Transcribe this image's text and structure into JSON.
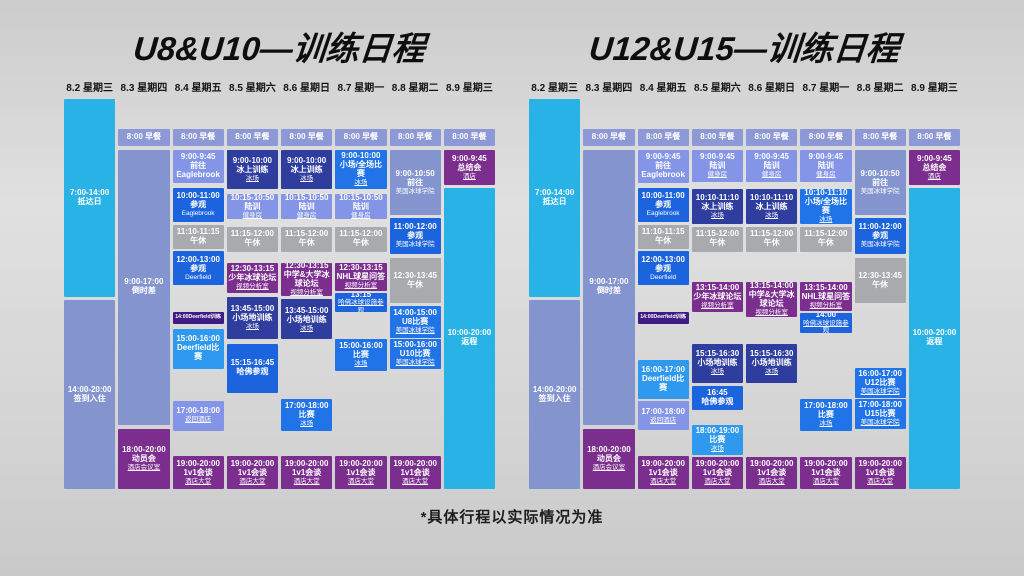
{
  "footnote": "*具体行程以实际情况为准",
  "colors": {
    "cyan": "#29b2e6",
    "peri": "#8494cf",
    "bfast": "#8d98d6",
    "lblue": "#8495e8",
    "navy": "#2e3d9e",
    "bblue": "#1c64dd",
    "blue": "#2173e8",
    "mblue": "#2e99ee",
    "gray": "#a8aaad",
    "purple": "#7b2e8e",
    "dpurple": "#3f1b86"
  },
  "schedules": [
    {
      "title": "U8&U10—训练日程",
      "columns": [
        {
          "date": "8.2 星期三",
          "events": [
            {
              "time": "7:00-14:00",
              "title": "抵达日",
              "c": "cyan",
              "s": 7.0,
              "e": 13.6
            },
            {
              "time": "14:00-20:00",
              "title": "签到入住",
              "c": "peri",
              "s": 13.7,
              "e": 20.0
            }
          ]
        },
        {
          "date": "8.3 星期四",
          "events": [
            {
              "time": "8:00 早餐",
              "c": "bfast",
              "s": 8.0,
              "e": 8.55
            },
            {
              "time": "9:00-17:00",
              "title": "倒时差",
              "c": "peri",
              "s": 8.7,
              "e": 17.85
            },
            {
              "time": "18:00-20:00",
              "title": "动员会",
              "loc": "酒店会议室",
              "c": "purple",
              "s": 18.0,
              "e": 20.0
            }
          ]
        },
        {
          "date": "8.4 星期五",
          "events": [
            {
              "time": "8:00 早餐",
              "c": "bfast",
              "s": 8.0,
              "e": 8.55
            },
            {
              "time": "9:00-9:45",
              "title": "前往Eaglebrook",
              "c": "lblue",
              "s": 8.7,
              "e": 9.8
            },
            {
              "time": "10:00-11:00",
              "title": "参观",
              "sub": "Eaglebrook",
              "c": "bblue",
              "s": 9.95,
              "e": 11.1
            },
            {
              "time": "11:10-11:15",
              "title": "午休",
              "c": "gray",
              "s": 11.2,
              "e": 12.0
            },
            {
              "time": "12:00-13:00",
              "title": "参观",
              "sub": "Deerfield",
              "c": "bblue",
              "s": 12.08,
              "e": 13.2
            },
            {
              "time": "14:00Deerfield训练",
              "c": "dpurple",
              "s": 14.1,
              "e": 14.5,
              "tiny": 1
            },
            {
              "time": "15:00-16:00",
              "title": "Deerfield比赛",
              "c": "mblue",
              "s": 14.65,
              "e": 16.0
            },
            {
              "time": "17:00-18:00",
              "loc": "返回酒店",
              "c": "lblue",
              "s": 17.05,
              "e": 18.05
            },
            {
              "time": "19:00-20:00",
              "title": "1v1会谈",
              "loc": "酒店大堂",
              "c": "purple",
              "s": 18.9,
              "e": 20.0
            }
          ]
        },
        {
          "date": "8.5 星期六",
          "events": [
            {
              "time": "8:00 早餐",
              "c": "bfast",
              "s": 8.0,
              "e": 8.55
            },
            {
              "time": "9:00-10:00",
              "title": "冰上训练",
              "loc": "冰场",
              "c": "navy",
              "s": 8.7,
              "e": 10.0
            },
            {
              "time": "10:15-10:50",
              "title": "陆训",
              "loc": "健身房",
              "c": "lblue",
              "s": 10.15,
              "e": 11.0
            },
            {
              "time": "11:15-12:00",
              "title": "午休",
              "c": "gray",
              "s": 11.25,
              "e": 12.1
            },
            {
              "time": "12:30-13:15",
              "title": "少年冰球论坛",
              "loc": "视频分析室",
              "c": "purple",
              "s": 12.45,
              "e": 13.45
            },
            {
              "time": "13:45-15:00",
              "title": "小场地训练",
              "loc": "冰场",
              "c": "navy",
              "s": 13.6,
              "e": 15.0
            },
            {
              "time": "15:15-16:45",
              "title": "哈佛参观",
              "c": "bblue",
              "s": 15.15,
              "e": 16.8
            },
            {
              "time": "19:00-20:00",
              "title": "1v1会谈",
              "loc": "酒店大堂",
              "c": "purple",
              "s": 18.9,
              "e": 20.0
            }
          ]
        },
        {
          "date": "8.6 星期日",
          "events": [
            {
              "time": "8:00 早餐",
              "c": "bfast",
              "s": 8.0,
              "e": 8.55
            },
            {
              "time": "9:00-10:00",
              "title": "冰上训练",
              "loc": "冰场",
              "c": "navy",
              "s": 8.7,
              "e": 10.0
            },
            {
              "time": "10:15-10:50",
              "title": "陆训",
              "loc": "健身房",
              "c": "lblue",
              "s": 10.15,
              "e": 11.0
            },
            {
              "time": "11:15-12:00",
              "title": "午休",
              "c": "gray",
              "s": 11.25,
              "e": 12.1
            },
            {
              "time": "12:30-13:15",
              "title": "中学&大学冰球论坛",
              "loc": "视频分析室",
              "c": "purple",
              "s": 12.45,
              "e": 13.55
            },
            {
              "time": "13:45-15:00",
              "title": "小场地训练",
              "loc": "冰场",
              "c": "navy",
              "s": 13.68,
              "e": 15.0
            },
            {
              "time": "17:00-18:00",
              "title": "比赛",
              "loc": "冰场",
              "c": "blue",
              "s": 17.0,
              "e": 18.05
            },
            {
              "time": "19:00-20:00",
              "title": "1v1会谈",
              "loc": "酒店大堂",
              "c": "purple",
              "s": 18.9,
              "e": 20.0
            }
          ]
        },
        {
          "date": "8.7 星期一",
          "events": [
            {
              "time": "8:00 早餐",
              "c": "bfast",
              "s": 8.0,
              "e": 8.55
            },
            {
              "time": "9:00-10:00",
              "title": "小场/全场比赛",
              "loc": "冰场",
              "c": "blue",
              "s": 8.7,
              "e": 10.0
            },
            {
              "time": "10:15-10:50",
              "title": "陆训",
              "loc": "健身房",
              "c": "lblue",
              "s": 10.15,
              "e": 11.0
            },
            {
              "time": "11:15-12:00",
              "title": "午休",
              "c": "gray",
              "s": 11.25,
              "e": 12.1
            },
            {
              "time": "12:30-13:15",
              "title": "NHL球星问答",
              "loc": "视频分析室",
              "c": "purple",
              "s": 12.45,
              "e": 13.4
            },
            {
              "time": "13:15",
              "loc": "哈佛冰球设施参观",
              "c": "bblue",
              "s": 13.45,
              "e": 14.1
            },
            {
              "time": "15:00-16:00",
              "title": "比赛",
              "loc": "冰场",
              "c": "blue",
              "s": 15.0,
              "e": 16.05
            },
            {
              "time": "19:00-20:00",
              "title": "1v1会谈",
              "loc": "酒店大堂",
              "c": "purple",
              "s": 18.9,
              "e": 20.0
            }
          ]
        },
        {
          "date": "8.8 星期二",
          "events": [
            {
              "time": "8:00 早餐",
              "c": "bfast",
              "s": 8.0,
              "e": 8.55
            },
            {
              "time": "9:00-10:50",
              "title": "前往",
              "sub": "美国冰球学院",
              "c": "peri",
              "s": 8.7,
              "e": 10.85
            },
            {
              "time": "11:00-12:00",
              "title": "参观",
              "sub": "美国冰球学院",
              "c": "bblue",
              "s": 10.95,
              "e": 12.15
            },
            {
              "time": "12:30-13:45",
              "title": "午休",
              "c": "gray",
              "s": 12.3,
              "e": 13.8
            },
            {
              "time": "14:00-15:00",
              "title": "U8比赛",
              "loc": "美国冰球学院",
              "c": "blue",
              "s": 13.9,
              "e": 14.95
            },
            {
              "time": "15:00-16:00",
              "title": "U10比赛",
              "loc": "美国冰球学院",
              "c": "blue",
              "s": 15.0,
              "e": 16.0
            },
            {
              "time": "19:00-20:00",
              "title": "1v1会谈",
              "loc": "酒店大堂",
              "c": "purple",
              "s": 18.9,
              "e": 20.0
            }
          ]
        },
        {
          "date": "8.9 星期三",
          "events": [
            {
              "time": "8:00 早餐",
              "c": "bfast",
              "s": 8.0,
              "e": 8.55
            },
            {
              "time": "9:00-9:45",
              "title": "总结会",
              "loc": "酒店",
              "c": "purple",
              "s": 8.7,
              "e": 9.85
            },
            {
              "time": "10:00-20:00",
              "title": "返程",
              "c": "cyan",
              "s": 9.95,
              "e": 20.0
            }
          ]
        }
      ]
    },
    {
      "title": "U12&U15—训练日程",
      "columns": [
        {
          "date": "8.2 星期三",
          "events": [
            {
              "time": "7:00-14:00",
              "title": "抵达日",
              "c": "cyan",
              "s": 7.0,
              "e": 13.6
            },
            {
              "time": "14:00-20:00",
              "title": "签到入住",
              "c": "peri",
              "s": 13.7,
              "e": 20.0
            }
          ]
        },
        {
          "date": "8.3 星期四",
          "events": [
            {
              "time": "8:00 早餐",
              "c": "bfast",
              "s": 8.0,
              "e": 8.55
            },
            {
              "time": "9:00-17:00",
              "title": "倒时差",
              "c": "peri",
              "s": 8.7,
              "e": 17.85
            },
            {
              "time": "18:00-20:00",
              "title": "动员会",
              "loc": "酒店会议室",
              "c": "purple",
              "s": 18.0,
              "e": 20.0
            }
          ]
        },
        {
          "date": "8.4 星期五",
          "events": [
            {
              "time": "8:00 早餐",
              "c": "bfast",
              "s": 8.0,
              "e": 8.55
            },
            {
              "time": "9:00-9:45",
              "title": "前往Eaglebrook",
              "c": "lblue",
              "s": 8.7,
              "e": 9.8
            },
            {
              "time": "10:00-11:00",
              "title": "参观",
              "sub": "Eaglebrook",
              "c": "bblue",
              "s": 9.95,
              "e": 11.1
            },
            {
              "time": "11:10-11:15",
              "title": "午休",
              "c": "gray",
              "s": 11.2,
              "e": 12.0
            },
            {
              "time": "12:00-13:00",
              "title": "参观",
              "sub": "Deerfield",
              "c": "bblue",
              "s": 12.08,
              "e": 13.2
            },
            {
              "time": "14:00Deerfield训练",
              "c": "dpurple",
              "s": 14.1,
              "e": 14.5,
              "tiny": 1
            },
            {
              "time": "16:00-17:00",
              "title": "Deerfield比赛",
              "c": "mblue",
              "s": 15.7,
              "e": 17.0
            },
            {
              "time": "17:00-18:00",
              "loc": "返回酒店",
              "c": "lblue",
              "s": 17.08,
              "e": 18.05
            },
            {
              "time": "19:00-20:00",
              "title": "1v1会谈",
              "loc": "酒店大堂",
              "c": "purple",
              "s": 18.9,
              "e": 20.0
            }
          ]
        },
        {
          "date": "8.5 星期六",
          "events": [
            {
              "time": "8:00 早餐",
              "c": "bfast",
              "s": 8.0,
              "e": 8.55
            },
            {
              "time": "9:00-9:45",
              "title": "陆训",
              "loc": "健身房",
              "c": "lblue",
              "s": 8.7,
              "e": 9.75
            },
            {
              "time": "10:10-11:10",
              "title": "冰上训练",
              "loc": "冰场",
              "c": "navy",
              "s": 10.0,
              "e": 11.17
            },
            {
              "time": "11:15-12:00",
              "title": "午休",
              "c": "gray",
              "s": 11.25,
              "e": 12.1
            },
            {
              "time": "13:15-14:00",
              "title": "少年冰球论坛",
              "loc": "视频分析室",
              "c": "purple",
              "s": 13.1,
              "e": 14.1
            },
            {
              "time": "15:15-16:30",
              "title": "小场地训练",
              "loc": "冰场",
              "c": "navy",
              "s": 15.15,
              "e": 16.45
            },
            {
              "time": "16:45",
              "title": "哈佛参观",
              "c": "bblue",
              "s": 16.55,
              "e": 17.35
            },
            {
              "time": "18:00-19:00",
              "title": "比赛",
              "loc": "冰场",
              "c": "mblue",
              "s": 17.85,
              "e": 18.85
            },
            {
              "time": "19:00-20:00",
              "title": "1v1会谈",
              "loc": "酒店大堂",
              "c": "purple",
              "s": 18.92,
              "e": 20.0
            }
          ]
        },
        {
          "date": "8.6 星期日",
          "events": [
            {
              "time": "8:00 早餐",
              "c": "bfast",
              "s": 8.0,
              "e": 8.55
            },
            {
              "time": "9:00-9:45",
              "title": "陆训",
              "loc": "健身房",
              "c": "lblue",
              "s": 8.7,
              "e": 9.75
            },
            {
              "time": "10:10-11:10",
              "title": "冰上训练",
              "loc": "冰场",
              "c": "navy",
              "s": 10.0,
              "e": 11.17
            },
            {
              "time": "11:15-12:00",
              "title": "午休",
              "c": "gray",
              "s": 11.25,
              "e": 12.1
            },
            {
              "time": "13:15-14:00",
              "title": "中学&大学冰球论坛",
              "loc": "视频分析室",
              "c": "purple",
              "s": 13.1,
              "e": 14.25
            },
            {
              "time": "15:15-16:30",
              "title": "小场地训练",
              "loc": "冰场",
              "c": "navy",
              "s": 15.15,
              "e": 16.45
            },
            {
              "time": "19:00-20:00",
              "title": "1v1会谈",
              "loc": "酒店大堂",
              "c": "purple",
              "s": 18.92,
              "e": 20.0
            }
          ]
        },
        {
          "date": "8.7 星期一",
          "events": [
            {
              "time": "8:00 早餐",
              "c": "bfast",
              "s": 8.0,
              "e": 8.55
            },
            {
              "time": "9:00-9:45",
              "title": "陆训",
              "loc": "健身房",
              "c": "lblue",
              "s": 8.7,
              "e": 9.75
            },
            {
              "time": "10:10-11:10",
              "title": "小场/全场比赛",
              "loc": "冰场",
              "c": "blue",
              "s": 10.0,
              "e": 11.17
            },
            {
              "time": "11:15-12:00",
              "title": "午休",
              "c": "gray",
              "s": 11.25,
              "e": 12.1
            },
            {
              "time": "13:15-14:00",
              "title": "NHL球星问答",
              "loc": "视频分析室",
              "c": "purple",
              "s": 13.1,
              "e": 14.05
            },
            {
              "time": "14:00",
              "loc": "哈佛冰球设施参观",
              "c": "bblue",
              "s": 14.12,
              "e": 14.8
            },
            {
              "time": "17:00-18:00",
              "title": "比赛",
              "loc": "冰场",
              "c": "blue",
              "s": 17.0,
              "e": 18.05
            },
            {
              "time": "19:00-20:00",
              "title": "1v1会谈",
              "loc": "酒店大堂",
              "c": "purple",
              "s": 18.92,
              "e": 20.0
            }
          ]
        },
        {
          "date": "8.8 星期二",
          "events": [
            {
              "time": "8:00 早餐",
              "c": "bfast",
              "s": 8.0,
              "e": 8.55
            },
            {
              "time": "9:00-10:50",
              "title": "前往",
              "sub": "美国冰球学院",
              "c": "peri",
              "s": 8.7,
              "e": 10.85
            },
            {
              "time": "11:00-12:00",
              "title": "参观",
              "sub": "美国冰球学院",
              "c": "bblue",
              "s": 10.95,
              "e": 12.15
            },
            {
              "time": "12:30-13:45",
              "title": "午休",
              "c": "gray",
              "s": 12.3,
              "e": 13.8
            },
            {
              "time": "16:00-17:00",
              "title": "U12比赛",
              "loc": "美国冰球学院",
              "c": "blue",
              "s": 15.95,
              "e": 16.95
            },
            {
              "time": "17:00-18:00",
              "title": "U15比赛",
              "loc": "美国冰球学院",
              "c": "blue",
              "s": 17.0,
              "e": 18.0
            },
            {
              "time": "19:00-20:00",
              "title": "1v1会谈",
              "loc": "酒店大堂",
              "c": "purple",
              "s": 18.92,
              "e": 20.0
            }
          ]
        },
        {
          "date": "8.9 星期三",
          "events": [
            {
              "time": "8:00 早餐",
              "c": "bfast",
              "s": 8.0,
              "e": 8.55
            },
            {
              "time": "9:00-9:45",
              "title": "总结会",
              "loc": "酒店",
              "c": "purple",
              "s": 8.7,
              "e": 9.85
            },
            {
              "time": "10:00-20:00",
              "title": "返程",
              "c": "cyan",
              "s": 9.95,
              "e": 20.0
            }
          ]
        }
      ]
    }
  ]
}
